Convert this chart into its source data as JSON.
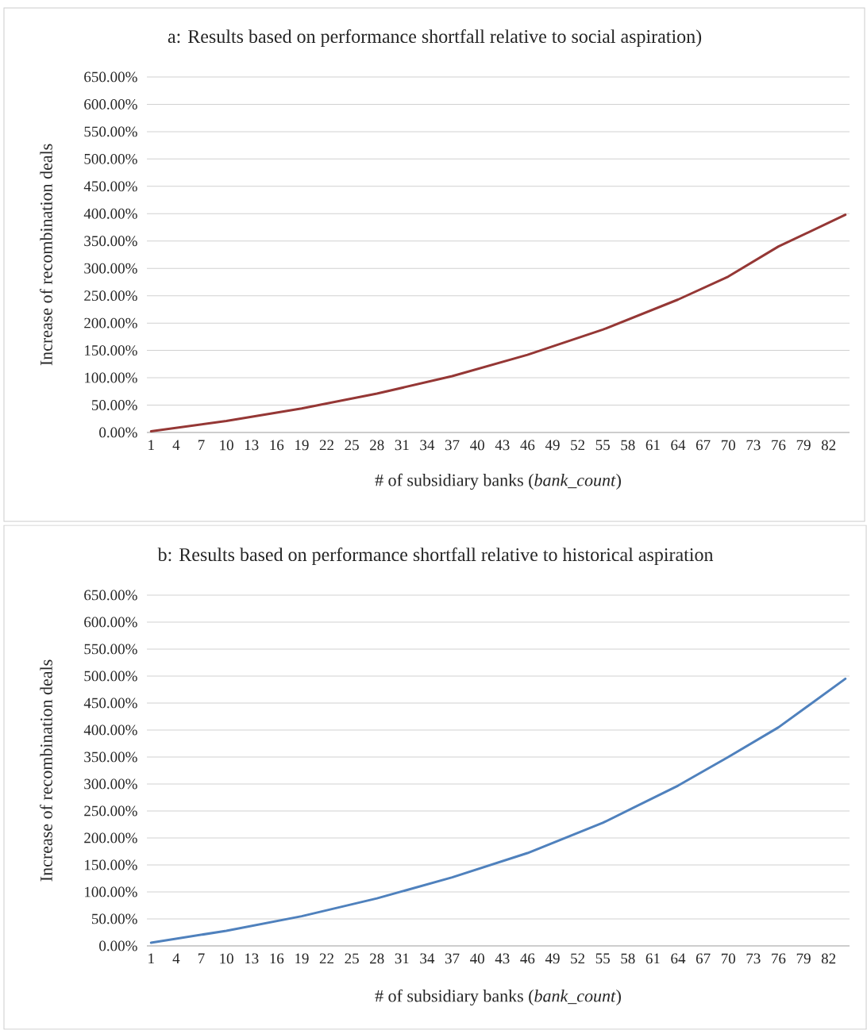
{
  "chart_data": [
    {
      "type": "line",
      "title": "a: Results based on performance shortfall relative to social aspiration)",
      "xlabel": "# of subsidiary banks (*bank_count*)",
      "ylabel": "Increase of recombination deals",
      "x": [
        1,
        10,
        19,
        28,
        37,
        46,
        55,
        64,
        70,
        76,
        84
      ],
      "values": [
        2,
        21,
        44,
        71,
        103,
        142,
        188,
        243,
        285,
        340,
        398
      ],
      "color": "#953735",
      "xlim": [
        0.5,
        84.5
      ],
      "xticks": [
        1,
        4,
        7,
        10,
        13,
        16,
        19,
        22,
        25,
        28,
        31,
        34,
        37,
        40,
        43,
        46,
        49,
        52,
        55,
        58,
        61,
        64,
        67,
        70,
        73,
        76,
        79,
        82
      ],
      "ylim": [
        0,
        650
      ],
      "yticks": [
        {
          "value": 0,
          "label": "0.00%"
        },
        {
          "value": 50,
          "label": "50.00%"
        },
        {
          "value": 100,
          "label": "100.00%"
        },
        {
          "value": 150,
          "label": "150.00%"
        },
        {
          "value": 200,
          "label": "200.00%"
        },
        {
          "value": 250,
          "label": "250.00%"
        },
        {
          "value": 300,
          "label": "300.00%"
        },
        {
          "value": 350,
          "label": "350.00%"
        },
        {
          "value": 400,
          "label": "400.00%"
        },
        {
          "value": 450,
          "label": "450.00%"
        },
        {
          "value": 500,
          "label": "500.00%"
        },
        {
          "value": 550,
          "label": "550.00%"
        },
        {
          "value": 600,
          "label": "600.00%"
        },
        {
          "value": 650,
          "label": "650.00%"
        }
      ],
      "grid": "y"
    },
    {
      "type": "line",
      "title": "b: Results based on performance shortfall relative to historical aspiration",
      "xlabel": "# of subsidiary banks (*bank_count*)",
      "ylabel": "Increase of recombination deals",
      "x": [
        1,
        10,
        19,
        28,
        37,
        46,
        55,
        64,
        70,
        76,
        84
      ],
      "values": [
        6,
        28,
        55,
        88,
        127,
        172,
        228,
        297,
        350,
        405,
        495
      ],
      "color": "#4f81bd",
      "xlim": [
        0.5,
        84.5
      ],
      "xticks": [
        1,
        4,
        7,
        10,
        13,
        16,
        19,
        22,
        25,
        28,
        31,
        34,
        37,
        40,
        43,
        46,
        49,
        52,
        55,
        58,
        61,
        64,
        67,
        70,
        73,
        76,
        79,
        82
      ],
      "ylim": [
        0,
        650
      ],
      "yticks": [
        {
          "value": 0,
          "label": "0.00%"
        },
        {
          "value": 50,
          "label": "50.00%"
        },
        {
          "value": 100,
          "label": "100.00%"
        },
        {
          "value": 150,
          "label": "150.00%"
        },
        {
          "value": 200,
          "label": "200.00%"
        },
        {
          "value": 250,
          "label": "250.00%"
        },
        {
          "value": 300,
          "label": "300.00%"
        },
        {
          "value": 350,
          "label": "350.00%"
        },
        {
          "value": 400,
          "label": "400.00%"
        },
        {
          "value": 450,
          "label": "450.00%"
        },
        {
          "value": 500,
          "label": "500.00%"
        },
        {
          "value": 550,
          "label": "550.00%"
        },
        {
          "value": 600,
          "label": "600.00%"
        },
        {
          "value": 650,
          "label": "650.00%"
        }
      ],
      "grid": "y"
    }
  ]
}
